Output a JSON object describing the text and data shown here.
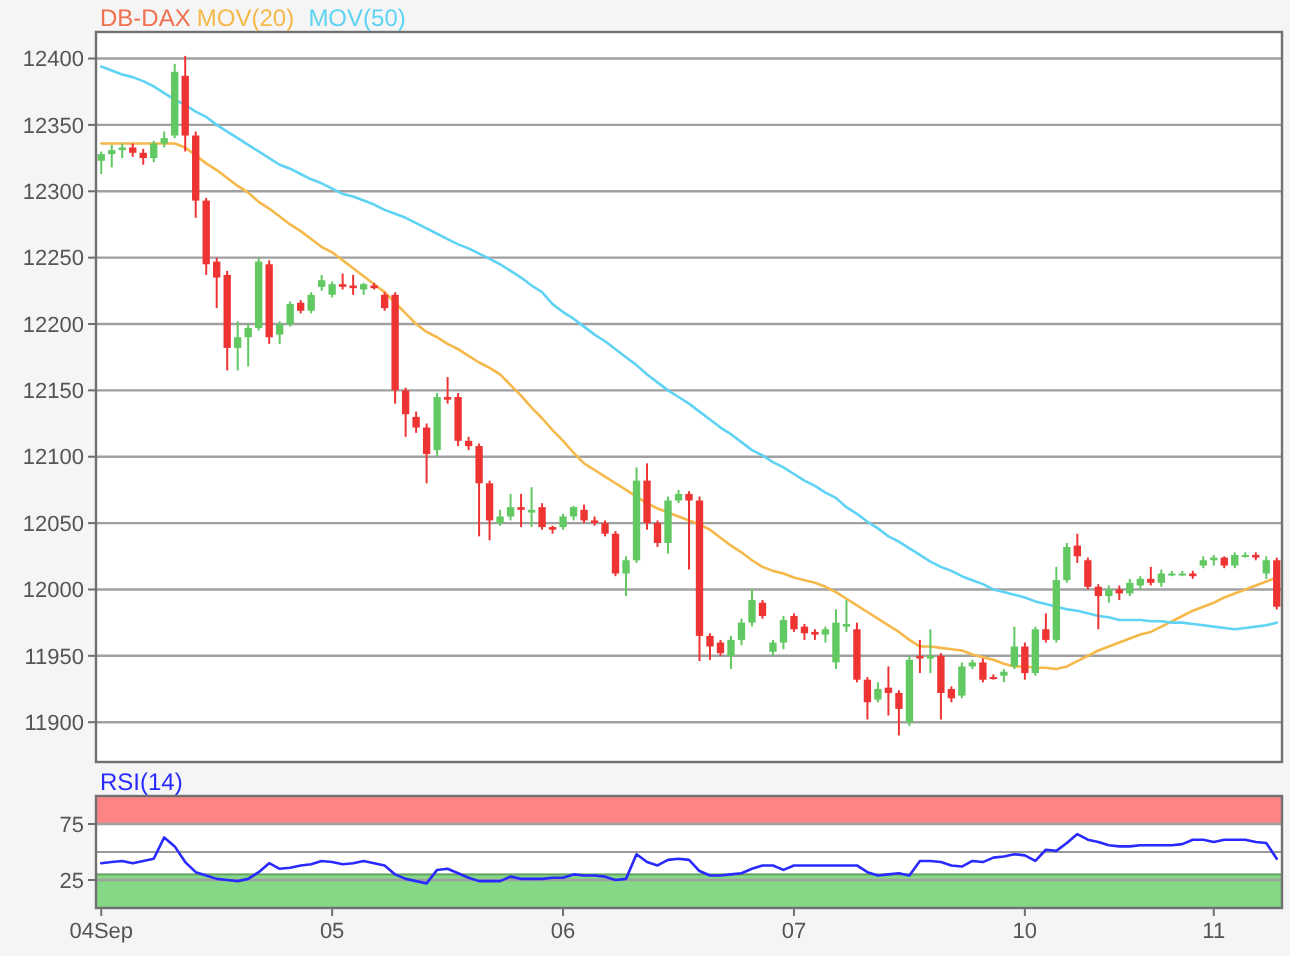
{
  "chart_data": [
    {
      "type": "candlestick",
      "legend": "top left",
      "grid": "y",
      "tick_labels": "y",
      "ylim": [
        11870,
        12420
      ],
      "yticks": [
        11900,
        11950,
        12000,
        12050,
        12100,
        12150,
        12200,
        12250,
        12300,
        12350,
        12400
      ],
      "categories": [
        null,
        null,
        null,
        null,
        null,
        null,
        null,
        null,
        null,
        null,
        null,
        null,
        null,
        null,
        null,
        null,
        null,
        null,
        null,
        null,
        null,
        null,
        null,
        null,
        null,
        null,
        null,
        null,
        null,
        null,
        null,
        null,
        null,
        null,
        null,
        null,
        null,
        null,
        null,
        null,
        null,
        null,
        null,
        null,
        null,
        null,
        null,
        null,
        null,
        null,
        null,
        null,
        null,
        null,
        null,
        null,
        null,
        null,
        null,
        null,
        null,
        null,
        null,
        null,
        null,
        null,
        null,
        null,
        null,
        null,
        null,
        null,
        null,
        null,
        null,
        null,
        null,
        null,
        null,
        null,
        null,
        null,
        null,
        null,
        null,
        null,
        null,
        null,
        null,
        null,
        null,
        null,
        null,
        null,
        null,
        null,
        null,
        null,
        null,
        null,
        null,
        null,
        null,
        null,
        null,
        null,
        null,
        null,
        null,
        null,
        null,
        null,
        null
      ],
      "series": [
        {
          "name": "MOV(20)",
          "type": "line",
          "color": "#f5b84a",
          "values": [
            12336,
            12336,
            12336,
            12336,
            12336,
            12336,
            12336,
            12336,
            12333,
            12327,
            12321,
            12316,
            12310,
            12304,
            12299,
            12292,
            12287,
            12281,
            12275,
            12270,
            12264,
            12258,
            12254,
            12248,
            12242,
            12236,
            12230,
            12224,
            12216,
            12208,
            12200,
            12194,
            12190,
            12185,
            12181,
            12176,
            12171,
            12167,
            12162,
            12154,
            12146,
            12137,
            12129,
            12120,
            12112,
            12103,
            12095,
            12090,
            12085,
            12080,
            12075,
            12070,
            12065,
            12061,
            12058,
            12055,
            12052,
            12049,
            12045,
            12039,
            12033,
            12028,
            12022,
            12017,
            12014,
            12012,
            12009,
            12007,
            12005,
            12002,
            11998,
            11993,
            11988,
            11983,
            11978,
            11973,
            11968,
            11962,
            11957,
            11957,
            11956,
            11955,
            11954,
            11951,
            11949,
            11947,
            11944,
            11942,
            11942,
            11941,
            11941,
            11940,
            11942,
            11946,
            11950,
            11954,
            11957,
            11960,
            11963,
            11966,
            11968,
            11972,
            11976,
            11980,
            11984,
            11987,
            11990,
            11994,
            11997,
            12000,
            12003,
            12006,
            12009
          ]
        },
        {
          "name": "MOV(50)",
          "type": "line",
          "color": "#5fd3f3",
          "values": [
            12394,
            12391,
            12388,
            12386,
            12383,
            12379,
            12374,
            12369,
            12365,
            12360,
            12356,
            12350,
            12345,
            12340,
            12335,
            12330,
            12325,
            12320,
            12317,
            12313,
            12309,
            12306,
            12302,
            12298,
            12296,
            12293,
            12290,
            12286,
            12283,
            12280,
            12276,
            12272,
            12268,
            12264,
            12260,
            12257,
            12253,
            12249,
            12245,
            12240,
            12235,
            12229,
            12224,
            12215,
            12209,
            12204,
            12198,
            12192,
            12187,
            12181,
            12175,
            12169,
            12162,
            12156,
            12150,
            12145,
            12140,
            12134,
            12128,
            12122,
            12117,
            12111,
            12105,
            12101,
            12096,
            12092,
            12087,
            12082,
            12078,
            12073,
            12069,
            12062,
            12057,
            12051,
            12046,
            12040,
            12036,
            12031,
            12026,
            12021,
            12017,
            12014,
            12010,
            12007,
            12004,
            12000,
            11998,
            11996,
            11994,
            11991,
            11989,
            11987,
            11985,
            11984,
            11982,
            11980,
            11979,
            11977,
            11977,
            11977,
            11976,
            11976,
            11975,
            11975,
            11974,
            11973,
            11972,
            11971,
            11970,
            11971,
            11972,
            11973,
            11975
          ]
        },
        {
          "name": "DB-DAX",
          "color": "#f07050",
          "colors": [
            "#62c862",
            "#62c862",
            "#62c862",
            "#ee3333",
            "#ee3333",
            "#62c862",
            "#62c862",
            "#62c862",
            "#ee3333",
            "#ee3333",
            "#ee3333",
            "#ee3333",
            "#ee3333",
            "#62c862",
            "#62c862",
            "#62c862",
            "#ee3333",
            "#62c862",
            "#62c862",
            "#ee3333",
            "#62c862",
            "#62c862",
            "#62c862",
            "#ee3333",
            "#ee3333",
            "#62c862",
            "#ee3333",
            "#ee3333",
            "#ee3333",
            "#ee3333",
            "#ee3333",
            "#ee3333",
            "#62c862",
            "#ee3333",
            "#ee3333",
            "#ee3333",
            "#ee3333",
            "#ee3333",
            "#62c862",
            "#62c862",
            "#ee3333",
            "#62c862",
            "#ee3333",
            "#ee3333",
            "#62c862",
            "#62c862",
            "#ee3333",
            "#ee3333",
            "#ee3333",
            "#ee3333",
            "#62c862",
            "#62c862",
            "#ee3333",
            "#ee3333",
            "#62c862",
            "#62c862",
            "#ee3333",
            "#ee3333",
            "#ee3333",
            "#ee3333",
            "#62c862",
            "#62c862",
            "#62c862",
            "#ee3333",
            "#62c862",
            "#62c862",
            "#ee3333",
            "#ee3333",
            "#ee3333",
            "#62c862",
            "#62c862",
            "#62c862",
            "#ee3333",
            "#ee3333",
            "#62c862",
            "#ee3333",
            "#ee3333",
            "#62c862",
            "#ee3333",
            "#62c862",
            "#ee3333",
            "#ee3333",
            "#62c862",
            "#62c862",
            "#ee3333",
            "#ee3333",
            "#62c862",
            "#62c862",
            "#ee3333",
            "#62c862",
            "#ee3333",
            "#62c862",
            "#62c862",
            "#ee3333",
            "#ee3333",
            "#ee3333",
            "#62c862",
            "#ee3333",
            "#62c862",
            "#62c862",
            "#ee3333",
            "#62c862",
            "#62c862",
            "#62c862",
            "#ee3333",
            "#62c862",
            "#62c862",
            "#ee3333",
            "#62c862",
            "#62c862",
            "#ee3333",
            "#62c862",
            "#ee3333"
          ],
          "ohlc": [
            [
              12323,
              12330,
              12313,
              12328
            ],
            [
              12328,
              12335,
              12318,
              12331
            ],
            [
              12331,
              12336,
              12325,
              12333
            ],
            [
              12333,
              12336,
              12326,
              12329
            ],
            [
              12329,
              12332,
              12320,
              12325
            ],
            [
              12325,
              12338,
              12322,
              12336
            ],
            [
              12336,
              12345,
              12333,
              12340
            ],
            [
              12342,
              12396,
              12340,
              12390
            ],
            [
              12387,
              12402,
              12330,
              12342
            ],
            [
              12342,
              12345,
              12280,
              12293
            ],
            [
              12293,
              12295,
              12237,
              12245
            ],
            [
              12247,
              12250,
              12212,
              12235
            ],
            [
              12237,
              12240,
              12165,
              12182
            ],
            [
              12182,
              12202,
              12165,
              12190
            ],
            [
              12190,
              12200,
              12168,
              12197
            ],
            [
              12197,
              12250,
              12195,
              12247
            ],
            [
              12245,
              12248,
              12185,
              12190
            ],
            [
              12192,
              12202,
              12185,
              12200
            ],
            [
              12200,
              12217,
              12198,
              12215
            ],
            [
              12216,
              12218,
              12208,
              12210
            ],
            [
              12210,
              12224,
              12208,
              12222
            ],
            [
              12228,
              12237,
              12225,
              12233
            ],
            [
              12222,
              12232,
              12220,
              12230
            ],
            [
              12230,
              12238,
              12226,
              12228
            ],
            [
              12229,
              12237,
              12222,
              12227
            ],
            [
              12226,
              12231,
              12222,
              12230
            ],
            [
              12229,
              12231,
              12226,
              12227
            ],
            [
              12222,
              12224,
              12210,
              12212
            ],
            [
              12222,
              12224,
              12140,
              12150
            ],
            [
              12150,
              12152,
              12115,
              12132
            ],
            [
              12130,
              12134,
              12118,
              12122
            ],
            [
              12122,
              12125,
              12080,
              12102
            ],
            [
              12105,
              12148,
              12100,
              12145
            ],
            [
              12145,
              12160,
              12140,
              12143
            ],
            [
              12145,
              12148,
              12108,
              12112
            ],
            [
              12112,
              12115,
              12105,
              12108
            ],
            [
              12108,
              12110,
              12040,
              12080
            ],
            [
              12080,
              12082,
              12037,
              12052
            ],
            [
              12050,
              12060,
              12048,
              12055
            ],
            [
              12055,
              12072,
              12052,
              12062
            ],
            [
              12062,
              12072,
              12047,
              12060
            ],
            [
              12058,
              12077,
              12047,
              12060
            ],
            [
              12062,
              12065,
              12045,
              12047
            ],
            [
              12047,
              12048,
              12042,
              12045
            ],
            [
              12047,
              12057,
              12045,
              12055
            ],
            [
              12055,
              12063,
              12052,
              12062
            ],
            [
              12060,
              12064,
              12050,
              12052
            ],
            [
              12052,
              12055,
              12048,
              12050
            ],
            [
              12050,
              12052,
              12040,
              12042
            ],
            [
              12042,
              12044,
              12010,
              12012
            ],
            [
              12012,
              12025,
              11995,
              12022
            ],
            [
              12022,
              12092,
              12020,
              12082
            ],
            [
              12082,
              12095,
              12045,
              12050
            ],
            [
              12050,
              12052,
              12032,
              12035
            ],
            [
              12035,
              12070,
              12027,
              12067
            ],
            [
              12067,
              12075,
              12065,
              12072
            ],
            [
              12072,
              12074,
              12015,
              12067
            ],
            [
              12067,
              12070,
              11946,
              11965
            ],
            [
              11965,
              11967,
              11947,
              11957
            ],
            [
              11960,
              11962,
              11950,
              11952
            ],
            [
              11950,
              11965,
              11940,
              11962
            ],
            [
              11962,
              11978,
              11958,
              11975
            ],
            [
              11975,
              12000,
              11972,
              11992
            ],
            [
              11990,
              11992,
              11978,
              11980
            ],
            [
              11953,
              11962,
              11950,
              11960
            ],
            [
              11960,
              11980,
              11955,
              11977
            ],
            [
              11980,
              11982,
              11968,
              11970
            ],
            [
              11972,
              11974,
              11962,
              11967
            ],
            [
              11968,
              11970,
              11962,
              11966
            ],
            [
              11966,
              11972,
              11960,
              11970
            ],
            [
              11945,
              11985,
              11940,
              11975
            ],
            [
              11972,
              11992,
              11968,
              11974
            ],
            [
              11970,
              11975,
              11930,
              11932
            ],
            [
              11932,
              11934,
              11902,
              11915
            ],
            [
              11917,
              11930,
              11915,
              11925
            ],
            [
              11926,
              11942,
              11905,
              11922
            ],
            [
              11922,
              11924,
              11890,
              11910
            ],
            [
              11900,
              11950,
              11897,
              11947
            ],
            [
              11950,
              11962,
              11937,
              11948
            ],
            [
              11948,
              11970,
              11937,
              11950
            ],
            [
              11950,
              11952,
              11902,
              11922
            ],
            [
              11925,
              11927,
              11915,
              11918
            ],
            [
              11920,
              11945,
              11918,
              11942
            ],
            [
              11942,
              11947,
              11940,
              11945
            ],
            [
              11945,
              11948,
              11930,
              11932
            ],
            [
              11934,
              11936,
              11932,
              11933
            ],
            [
              11935,
              11940,
              11930,
              11938
            ],
            [
              11942,
              11972,
              11940,
              11957
            ],
            [
              11957,
              11960,
              11932,
              11937
            ],
            [
              11937,
              11972,
              11935,
              11970
            ],
            [
              11970,
              11982,
              11960,
              11962
            ],
            [
              11962,
              12017,
              11960,
              12007
            ],
            [
              12007,
              12035,
              12005,
              12032
            ],
            [
              12033,
              12042,
              12020,
              12025
            ],
            [
              12022,
              12024,
              12000,
              12002
            ],
            [
              12002,
              12004,
              11970,
              11995
            ],
            [
              11995,
              12003,
              11990,
              12000
            ],
            [
              12000,
              12003,
              11992,
              11997
            ],
            [
              11997,
              12008,
              11995,
              12005
            ],
            [
              12003,
              12010,
              12000,
              12008
            ],
            [
              12008,
              12017,
              12003,
              12005
            ],
            [
              12005,
              12015,
              12002,
              12012
            ],
            [
              12012,
              12014,
              12010,
              12012
            ],
            [
              12012,
              12014,
              12010,
              12012
            ],
            [
              12012,
              12014,
              12008,
              12010
            ],
            [
              12018,
              12025,
              12016,
              12022
            ],
            [
              12022,
              12026,
              12018,
              12024
            ],
            [
              12024,
              12025,
              12016,
              12018
            ],
            [
              12018,
              12028,
              12016,
              12026
            ],
            [
              12026,
              12028,
              12024,
              12026
            ],
            [
              12026,
              12028,
              12022,
              12024
            ],
            [
              12012,
              12025,
              12008,
              12022
            ],
            [
              12022,
              12024,
              11985,
              11987
            ]
          ]
        }
      ]
    },
    {
      "type": "line",
      "legend": "top left",
      "grid": "y",
      "ylim": [
        0,
        100
      ],
      "yticks": [
        25,
        75
      ],
      "categories": [
        "04Sep",
        null,
        null,
        null,
        null,
        null,
        null,
        null,
        null,
        null,
        null,
        null,
        null,
        null,
        null,
        null,
        null,
        null,
        null,
        null,
        null,
        null,
        "05",
        null,
        null,
        null,
        null,
        null,
        null,
        null,
        null,
        null,
        null,
        null,
        null,
        null,
        null,
        null,
        null,
        null,
        null,
        null,
        null,
        null,
        "06",
        null,
        null,
        null,
        null,
        null,
        null,
        null,
        null,
        null,
        null,
        null,
        null,
        null,
        null,
        null,
        null,
        null,
        null,
        null,
        null,
        null,
        "07",
        null,
        null,
        null,
        null,
        null,
        null,
        null,
        null,
        null,
        null,
        null,
        null,
        null,
        null,
        null,
        null,
        null,
        null,
        null,
        null,
        null,
        "10",
        null,
        null,
        null,
        null,
        null,
        null,
        null,
        null,
        null,
        null,
        null,
        null,
        null,
        null,
        null,
        null,
        null,
        "11",
        null,
        null,
        null,
        null,
        null,
        null
      ],
      "bands": [
        {
          "axis": "y",
          "from": 75,
          "to": 100,
          "color": "#ff8585"
        },
        {
          "axis": "y",
          "from": 0,
          "to": 30,
          "color": "#85d885"
        }
      ],
      "ref_lines": [
        {
          "axis": "y",
          "value": 50,
          "color": "#999999"
        }
      ],
      "series": [
        {
          "name": "RSI(14)",
          "color": "#2a2aff",
          "values": [
            40,
            41,
            42,
            40,
            42,
            44,
            63,
            55,
            41,
            32,
            29,
            26,
            25,
            24,
            26,
            32,
            40,
            35,
            36,
            38,
            39,
            42,
            41,
            39,
            40,
            42,
            40,
            38,
            30,
            26,
            24,
            22,
            34,
            35,
            31,
            27,
            24,
            24,
            24,
            28,
            26,
            26,
            26,
            27,
            27,
            30,
            29,
            29,
            28,
            25,
            26,
            48,
            41,
            38,
            43,
            44,
            43,
            33,
            29,
            29,
            30,
            31,
            35,
            38,
            38,
            34,
            38,
            38,
            38,
            38,
            38,
            38,
            38,
            32,
            29,
            30,
            31,
            29,
            42,
            42,
            41,
            38,
            37,
            42,
            41,
            45,
            46,
            48,
            47,
            42,
            52,
            51,
            58,
            66,
            61,
            59,
            56,
            55,
            55,
            56,
            56,
            56,
            56,
            57,
            61,
            61,
            59,
            61,
            61,
            61,
            59,
            58,
            44
          ]
        }
      ]
    }
  ]
}
